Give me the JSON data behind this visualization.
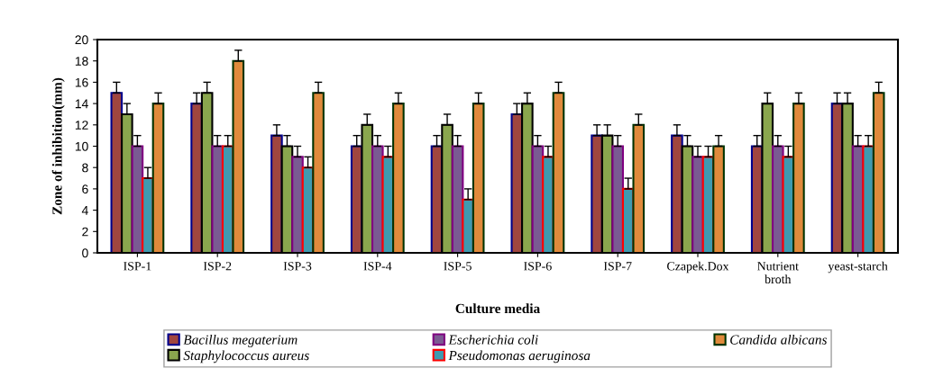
{
  "chart_data": {
    "type": "bar",
    "xlabel": "Culture media",
    "ylabel": "Zone of inhibition(mm)",
    "categories": [
      "ISP-1",
      "ISP-2",
      "ISP-3",
      "ISP-4",
      "ISP-5",
      "ISP-6",
      "ISP-7",
      "Czapek.Dox",
      "Nutrient\nbroth",
      "yeast-starch"
    ],
    "ylim": [
      0,
      20
    ],
    "yticks": [
      0,
      2,
      4,
      6,
      8,
      10,
      12,
      14,
      16,
      18,
      20
    ],
    "grid": false,
    "legend": "bottom",
    "series": [
      {
        "name": "Bacillus megaterium",
        "color": "#a0463f",
        "values": [
          15,
          14,
          11,
          10,
          10,
          13,
          11,
          11,
          10,
          14
        ],
        "errors": [
          [
            15,
            16
          ],
          [
            14,
            15
          ],
          [
            11,
            12
          ],
          [
            10,
            11
          ],
          [
            10,
            11
          ],
          [
            13,
            14
          ],
          [
            11,
            12
          ],
          [
            11,
            12
          ],
          [
            10,
            11
          ],
          [
            14,
            15
          ]
        ]
      },
      {
        "name": "Staphylococcus aureus",
        "color": "#8aa64e",
        "values": [
          13,
          15,
          10,
          12,
          12,
          14,
          11,
          10,
          14,
          14
        ],
        "errors": [
          [
            13,
            14
          ],
          [
            15,
            16
          ],
          [
            10,
            11
          ],
          [
            12,
            13
          ],
          [
            12,
            13
          ],
          [
            14,
            15
          ],
          [
            11,
            12
          ],
          [
            10,
            11
          ],
          [
            14,
            15
          ],
          [
            14,
            15
          ]
        ]
      },
      {
        "name": "Escherichia coli",
        "color": "#7a5a92",
        "values": [
          10,
          10,
          9,
          10,
          10,
          10,
          10,
          9,
          10,
          10
        ],
        "errors": [
          [
            10,
            11
          ],
          [
            10,
            11
          ],
          [
            9,
            10
          ],
          [
            10,
            11
          ],
          [
            10,
            11
          ],
          [
            10,
            11
          ],
          [
            10,
            11
          ],
          [
            9,
            10
          ],
          [
            10,
            11
          ],
          [
            10,
            11
          ]
        ]
      },
      {
        "name": "Pseudomonas aeruginosa",
        "color": "#3f9ab0",
        "values": [
          7,
          10,
          8,
          9,
          5,
          9,
          6,
          9,
          9,
          10
        ],
        "errors": [
          [
            7,
            8
          ],
          [
            10,
            11
          ],
          [
            8,
            9
          ],
          [
            9,
            10
          ],
          [
            5,
            6
          ],
          [
            9,
            10
          ],
          [
            6,
            7
          ],
          [
            9,
            10
          ],
          [
            9,
            10
          ],
          [
            10,
            11
          ]
        ]
      },
      {
        "name": "Candida albicans",
        "color": "#e08a3c",
        "values": [
          14,
          18,
          15,
          14,
          14,
          15,
          12,
          10,
          14,
          15
        ],
        "errors": [
          [
            14,
            15
          ],
          [
            18,
            19
          ],
          [
            15,
            16
          ],
          [
            14,
            15
          ],
          [
            14,
            15
          ],
          [
            15,
            16
          ],
          [
            12,
            13
          ],
          [
            10,
            11
          ],
          [
            14,
            15
          ],
          [
            15,
            16
          ]
        ]
      }
    ]
  }
}
